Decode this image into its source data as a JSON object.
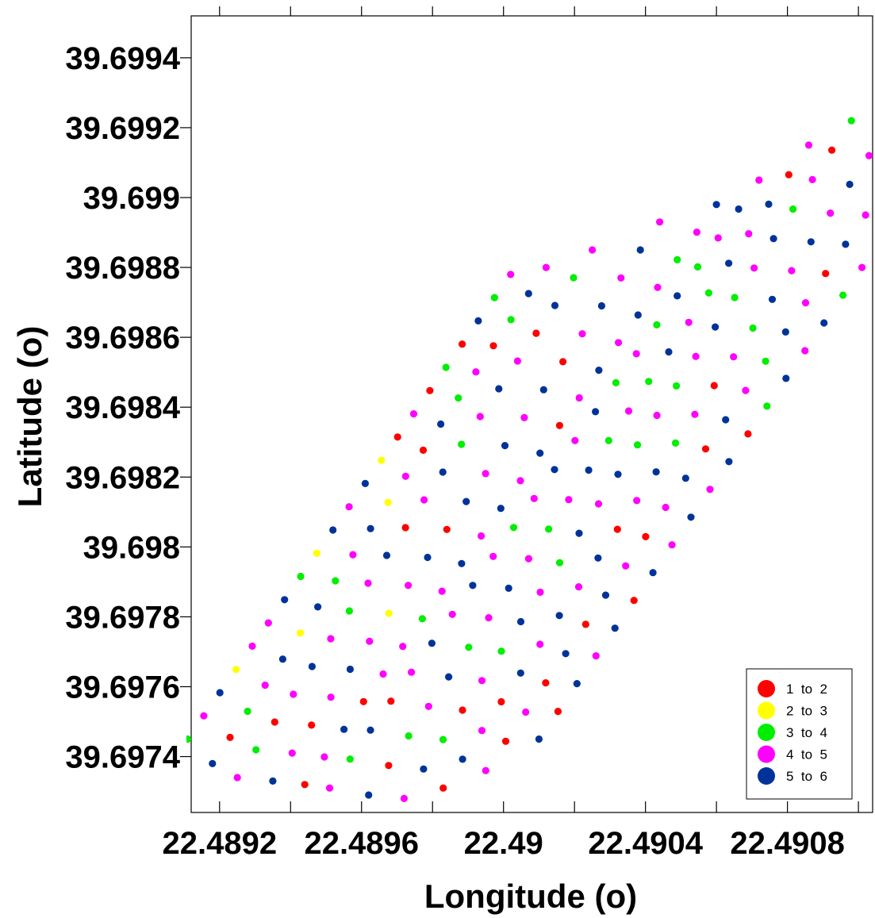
{
  "chart_data": {
    "type": "scatter",
    "xlabel": "Longitude (o)",
    "ylabel": "Latitude (o)",
    "xlim": [
      22.48912,
      22.49104
    ],
    "ylim": [
      39.69724,
      39.69952
    ],
    "x_ticks": [
      22.4892,
      22.4896,
      22.49,
      22.4904,
      22.4908
    ],
    "x_tick_labels": [
      "22.4892",
      "22.4896",
      "22.49",
      "22.4904",
      "22.4908"
    ],
    "x_minor_ticks": [
      22.4894,
      22.4898,
      22.4902,
      22.4906,
      22.491
    ],
    "y_ticks": [
      39.6974,
      39.6976,
      39.6978,
      39.698,
      39.6982,
      39.6984,
      39.6986,
      39.6988,
      39.699,
      39.6992,
      39.6994
    ],
    "y_tick_labels": [
      "39.6974",
      "39.6976",
      "39.6978",
      "39.698",
      "39.6982",
      "39.6984",
      "39.6986",
      "39.6988",
      "39.699",
      "39.6992",
      "39.6994"
    ],
    "grid": false,
    "legend": {
      "position": "bottom-right",
      "entries": [
        {
          "label": "1  to  2",
          "color": "#ff0000"
        },
        {
          "label": "2  to  3",
          "color": "#ffff00"
        },
        {
          "label": "3  to  4",
          "color": "#00ee00"
        },
        {
          "label": "4  to  5",
          "color": "#ff00ff"
        },
        {
          "label": "5  to  6",
          "color": "#003399"
        }
      ]
    },
    "class_colors": [
      "#ff0000",
      "#ffff00",
      "#00ee00",
      "#ff00ff",
      "#003399"
    ],
    "tracks": [
      {
        "x0": 22.48911,
        "y0": 39.69745,
        "x1": 22.49002,
        "y1": 39.69878,
        "classes": [
          2,
          3,
          4,
          1,
          3,
          3,
          4,
          2,
          1,
          4,
          3,
          4,
          1,
          0,
          3,
          0,
          2,
          0,
          4,
          2,
          3
        ]
      },
      {
        "x0": 22.48918,
        "y0": 39.69738,
        "x1": 22.49012,
        "y1": 39.6988,
        "classes": [
          4,
          0,
          2,
          3,
          4,
          1,
          4,
          2,
          3,
          4,
          1,
          3,
          0,
          4,
          2,
          3,
          0,
          2,
          4,
          3
        ]
      },
      {
        "x0": 22.48925,
        "y0": 39.69734,
        "x1": 22.49025,
        "y1": 39.69885,
        "classes": [
          3,
          2,
          0,
          3,
          4,
          3,
          2,
          3,
          4,
          0,
          3,
          4,
          2,
          3,
          4,
          3,
          0,
          4,
          2,
          3
        ]
      },
      {
        "x0": 22.48935,
        "y0": 39.69733,
        "x1": 22.49044,
        "y1": 39.69893,
        "classes": [
          4,
          3,
          0,
          3,
          4,
          3,
          1,
          3,
          4,
          0,
          4,
          3,
          4,
          3,
          4,
          0,
          3,
          4,
          3,
          4,
          3
        ]
      },
      {
        "x0": 22.48944,
        "y0": 39.69732,
        "x1": 22.4906,
        "y1": 39.69898,
        "classes": [
          0,
          3,
          4,
          0,
          3,
          3,
          2,
          3,
          4,
          3,
          4,
          3,
          4,
          0,
          3,
          4,
          3,
          4,
          3,
          2,
          3,
          4
        ]
      },
      {
        "x0": 22.48951,
        "y0": 39.69731,
        "x1": 22.49072,
        "y1": 39.69905,
        "classes": [
          3,
          2,
          4,
          0,
          3,
          4,
          3,
          4,
          3,
          2,
          3,
          4,
          3,
          4,
          2,
          3,
          2,
          4,
          2,
          3,
          4,
          3
        ]
      },
      {
        "x0": 22.48962,
        "y0": 39.69729,
        "x1": 22.49086,
        "y1": 39.69915,
        "classes": [
          4,
          0,
          2,
          3,
          4,
          2,
          3,
          4,
          3,
          2,
          3,
          4,
          2,
          3,
          2,
          4,
          3,
          2,
          4,
          3,
          4,
          0,
          3
        ]
      },
      {
        "x0": 22.48972,
        "y0": 39.69728,
        "x1": 22.49098,
        "y1": 39.69922,
        "classes": [
          3,
          4,
          2,
          0,
          3,
          2,
          4,
          3,
          2,
          4,
          3,
          4,
          2,
          3,
          2,
          3,
          4,
          2,
          3,
          4,
          2,
          3,
          0,
          2
        ]
      },
      {
        "x0": 22.48983,
        "y0": 39.69731,
        "x1": 22.49103,
        "y1": 39.69912,
        "classes": [
          0,
          4,
          3,
          0,
          4,
          3,
          4,
          3,
          4,
          0,
          3,
          4,
          2,
          3,
          0,
          3,
          2,
          4,
          3,
          4,
          3,
          4,
          3
        ]
      },
      {
        "x0": 22.48995,
        "y0": 39.69736,
        "x1": 22.49102,
        "y1": 39.69895,
        "classes": [
          3,
          0,
          3,
          0,
          4,
          0,
          4,
          3,
          0,
          3,
          4,
          0,
          4,
          3,
          2,
          4,
          3,
          0,
          4,
          3
        ]
      },
      {
        "x0": 22.4901,
        "y0": 39.69745,
        "x1": 22.49101,
        "y1": 39.6988,
        "classes": [
          4,
          0,
          4,
          3,
          4,
          0,
          4,
          3,
          4,
          3,
          4,
          0,
          2,
          4,
          3,
          4,
          2,
          3
        ]
      }
    ]
  }
}
